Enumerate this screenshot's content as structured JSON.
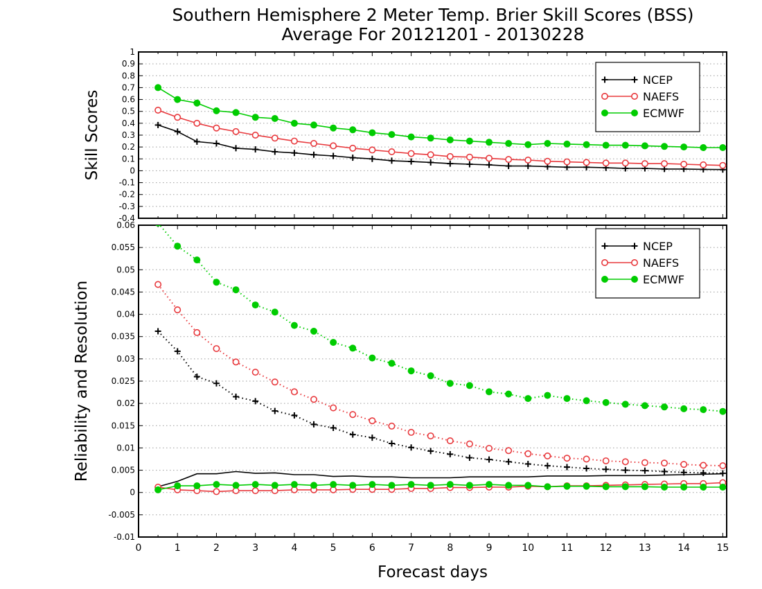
{
  "title_line1": "Southern Hemisphere 2 Meter Temp. Brier Skill Scores (BSS)",
  "title_line2": "Average For 20121201 - 20130228",
  "colors": {
    "NCEP": "#000000",
    "NAEFS": "#e8383c",
    "ECMWF": "#00cc00",
    "grid": "#9a9a9a"
  },
  "chart_data": [
    {
      "type": "line",
      "ylabel": "Skill Scores",
      "xlim": [
        0,
        15.1
      ],
      "ylim": [
        -0.4,
        1
      ],
      "yticks": [
        "-0.4",
        "-0.3",
        "-0.2",
        "-0.1",
        "0",
        "0.1",
        "0.2",
        "0.3",
        "0.4",
        "0.5",
        "0.6",
        "0.7",
        "0.8",
        "0.9",
        "1"
      ],
      "grid": "horizontal dotted",
      "legend": [
        "NCEP",
        "NAEFS",
        "ECMWF"
      ],
      "legend_position": "top-right",
      "x": [
        0.5,
        1,
        1.5,
        2,
        2.5,
        3,
        3.5,
        4,
        4.5,
        5,
        5.5,
        6,
        6.5,
        7,
        7.5,
        8,
        8.5,
        9,
        9.5,
        10,
        10.5,
        11,
        11.5,
        12,
        12.5,
        13,
        13.5,
        14,
        14.5,
        15
      ],
      "series": [
        {
          "name": "NCEP",
          "style": "solid",
          "marker": "plus",
          "values": [
            0.385,
            0.33,
            0.245,
            0.23,
            0.19,
            0.18,
            0.16,
            0.15,
            0.135,
            0.125,
            0.11,
            0.1,
            0.085,
            0.078,
            0.07,
            0.06,
            0.055,
            0.05,
            0.04,
            0.04,
            0.035,
            0.03,
            0.03,
            0.025,
            0.02,
            0.02,
            0.015,
            0.015,
            0.012,
            0.01
          ]
        },
        {
          "name": "NAEFS",
          "style": "solid",
          "marker": "open-circle",
          "values": [
            0.51,
            0.45,
            0.4,
            0.36,
            0.33,
            0.3,
            0.275,
            0.25,
            0.23,
            0.21,
            0.19,
            0.175,
            0.16,
            0.145,
            0.135,
            0.12,
            0.115,
            0.105,
            0.095,
            0.09,
            0.08,
            0.075,
            0.07,
            0.065,
            0.065,
            0.06,
            0.06,
            0.055,
            0.05,
            0.045
          ]
        },
        {
          "name": "ECMWF",
          "style": "solid",
          "marker": "filled-circle",
          "values": [
            0.7,
            0.6,
            0.57,
            0.505,
            0.49,
            0.45,
            0.44,
            0.4,
            0.385,
            0.36,
            0.345,
            0.32,
            0.305,
            0.285,
            0.275,
            0.26,
            0.25,
            0.24,
            0.23,
            0.22,
            0.23,
            0.225,
            0.22,
            0.215,
            0.215,
            0.21,
            0.205,
            0.2,
            0.195,
            0.195
          ]
        }
      ]
    },
    {
      "type": "line",
      "ylabel": "Reliability and Resolution",
      "xlabel": "Forecast days",
      "xlim": [
        0,
        15.1
      ],
      "ylim": [
        -0.01,
        0.06
      ],
      "xticks": [
        "0",
        "1",
        "2",
        "3",
        "4",
        "5",
        "6",
        "7",
        "8",
        "9",
        "10",
        "11",
        "12",
        "13",
        "14",
        "15"
      ],
      "yticks": [
        "-0.01",
        "-0.005",
        "0",
        "0.005",
        "0.01",
        "0.015",
        "0.02",
        "0.025",
        "0.03",
        "0.035",
        "0.04",
        "0.045",
        "0.05",
        "0.055",
        "0.06"
      ],
      "grid": "horizontal dotted",
      "legend": [
        "NCEP",
        "NAEFS",
        "ECMWF"
      ],
      "legend_position": "top-right",
      "x": [
        0.5,
        1,
        1.5,
        2,
        2.5,
        3,
        3.5,
        4,
        4.5,
        5,
        5.5,
        6,
        6.5,
        7,
        7.5,
        8,
        8.5,
        9,
        9.5,
        10,
        10.5,
        11,
        11.5,
        12,
        12.5,
        13,
        13.5,
        14,
        14.5,
        15
      ],
      "series": [
        {
          "name": "NCEP",
          "style": "dotted",
          "marker": "plus",
          "values": [
            0.0362,
            0.0317,
            0.026,
            0.0245,
            0.0215,
            0.0205,
            0.0183,
            0.0173,
            0.0153,
            0.0145,
            0.013,
            0.0123,
            0.011,
            0.0101,
            0.0093,
            0.0086,
            0.0078,
            0.0074,
            0.0069,
            0.0064,
            0.006,
            0.0057,
            0.0054,
            0.0052,
            0.005,
            0.0049,
            0.0047,
            0.0045,
            0.0044,
            0.0043
          ]
        },
        {
          "name": "NAEFS",
          "style": "dotted",
          "marker": "open-circle",
          "values": [
            0.0467,
            0.041,
            0.0359,
            0.0323,
            0.0293,
            0.027,
            0.0248,
            0.0226,
            0.0209,
            0.019,
            0.0175,
            0.0161,
            0.0149,
            0.0135,
            0.0127,
            0.0116,
            0.0109,
            0.0099,
            0.0094,
            0.0087,
            0.0082,
            0.0077,
            0.0075,
            0.0071,
            0.0069,
            0.0067,
            0.0066,
            0.0063,
            0.0061,
            0.006
          ]
        },
        {
          "name": "ECMWF",
          "style": "dotted",
          "marker": "filled-circle",
          "values": [
            0.0605,
            0.0553,
            0.0522,
            0.0472,
            0.0455,
            0.0421,
            0.0405,
            0.0375,
            0.0362,
            0.0337,
            0.0324,
            0.0302,
            0.029,
            0.0273,
            0.0262,
            0.0245,
            0.024,
            0.0226,
            0.0221,
            0.0211,
            0.0218,
            0.0211,
            0.0206,
            0.0202,
            0.0198,
            0.0195,
            0.0192,
            0.0188,
            0.0186,
            0.0182
          ]
        },
        {
          "name": "NCEP",
          "style": "solid",
          "marker": "none",
          "values": [
            0.0013,
            0.0025,
            0.0042,
            0.0042,
            0.0047,
            0.0043,
            0.0044,
            0.004,
            0.004,
            0.0036,
            0.0037,
            0.0035,
            0.0035,
            0.0033,
            0.0033,
            0.0033,
            0.0035,
            0.0035,
            0.0035,
            0.0035,
            0.0037,
            0.0037,
            0.0037,
            0.0038,
            0.0038,
            0.0038,
            0.0039,
            0.004,
            0.0041,
            0.0042
          ]
        },
        {
          "name": "NAEFS",
          "style": "solid",
          "marker": "open-circle",
          "values": [
            0.0012,
            0.0006,
            0.0004,
            0.0002,
            0.0004,
            0.0004,
            0.0004,
            0.0006,
            0.0006,
            0.0006,
            0.0007,
            0.0007,
            0.0007,
            0.0009,
            0.0009,
            0.0011,
            0.0011,
            0.0012,
            0.0012,
            0.0014,
            0.0013,
            0.0015,
            0.0015,
            0.0016,
            0.0017,
            0.0018,
            0.0019,
            0.002,
            0.002,
            0.0022
          ]
        },
        {
          "name": "ECMWF",
          "style": "solid",
          "marker": "filled-circle",
          "values": [
            0.0006,
            0.0015,
            0.0015,
            0.0018,
            0.0016,
            0.0018,
            0.0016,
            0.0018,
            0.0016,
            0.0018,
            0.0016,
            0.0018,
            0.0016,
            0.0018,
            0.0016,
            0.0018,
            0.0016,
            0.0018,
            0.0016,
            0.0016,
            0.0013,
            0.0014,
            0.0014,
            0.0013,
            0.0013,
            0.0013,
            0.0012,
            0.0012,
            0.0012,
            0.0012
          ]
        }
      ]
    }
  ]
}
